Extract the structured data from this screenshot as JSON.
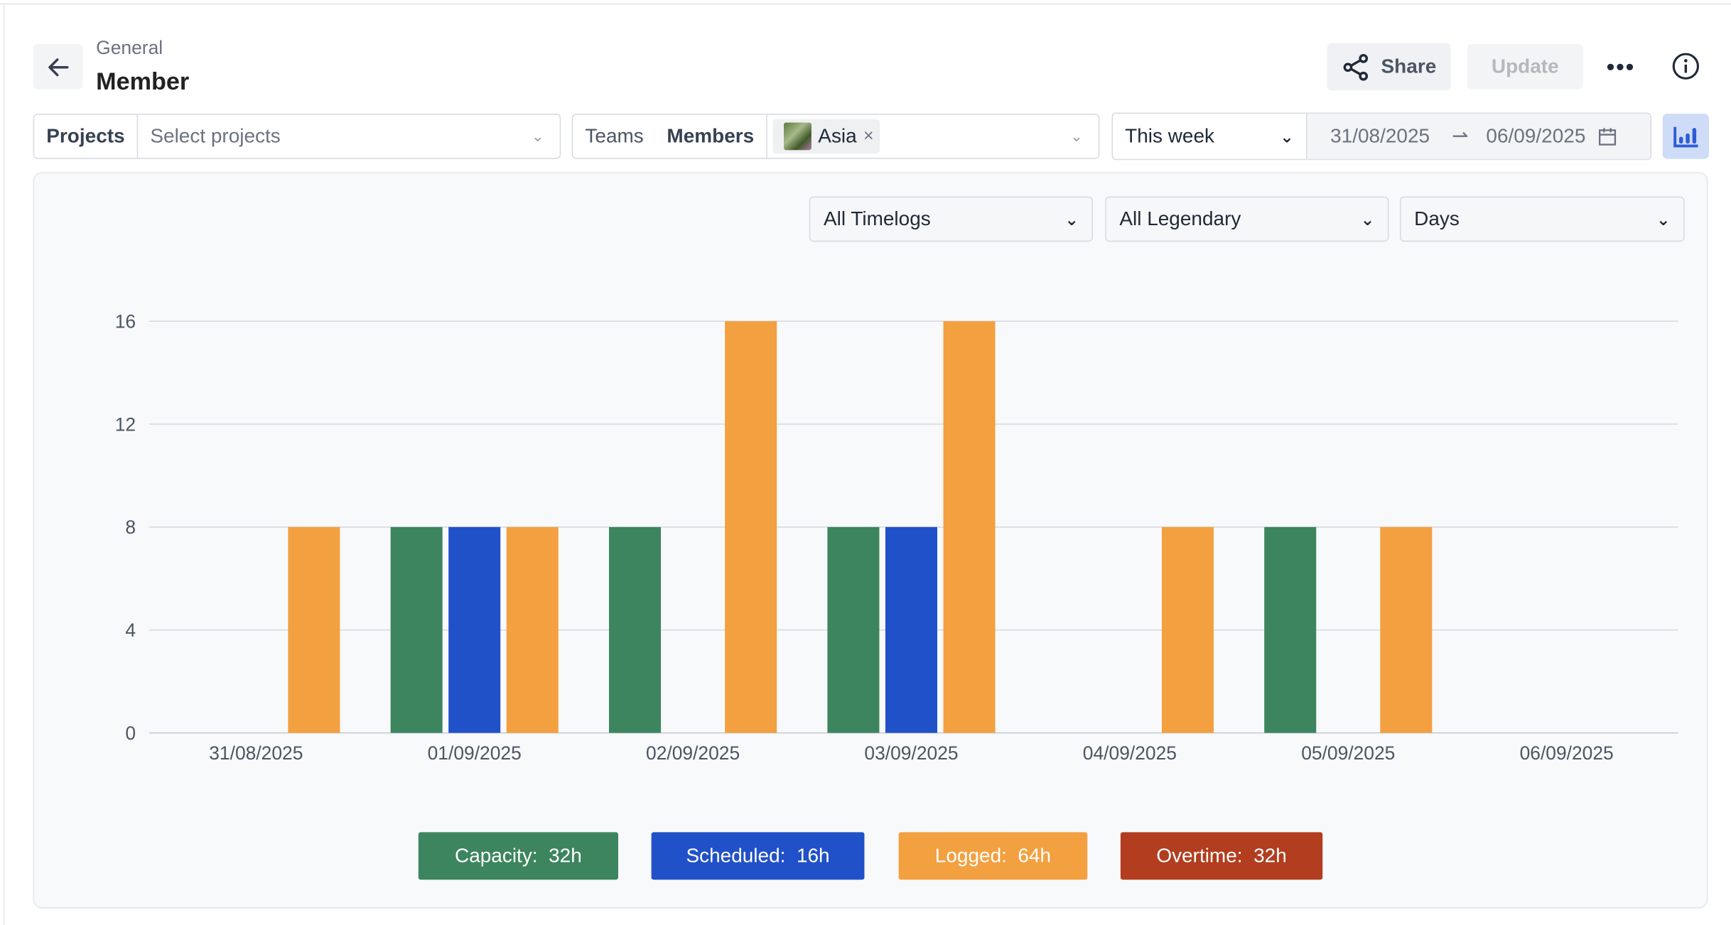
{
  "header": {
    "breadcrumb": "General",
    "title": "Member",
    "share_label": "Share",
    "update_label": "Update"
  },
  "filters": {
    "projects_label": "Projects",
    "projects_placeholder": "Select projects",
    "teams_label": "Teams",
    "members_label": "Members",
    "member_chip": "Asia",
    "period": "This week",
    "date_from": "31/08/2025",
    "date_to": "06/09/2025"
  },
  "chart_controls": {
    "timelogs": "All Timelogs",
    "legendary": "All Legendary",
    "granularity": "Days"
  },
  "colors": {
    "capacity": "#3c855e",
    "scheduled": "#2151c8",
    "logged": "#f3a040",
    "overtime": "#b23d1f",
    "accent": "#2e5bd8"
  },
  "legend": [
    {
      "key": "capacity",
      "label": "Capacity:  32h"
    },
    {
      "key": "scheduled",
      "label": "Scheduled:  16h"
    },
    {
      "key": "logged",
      "label": "Logged:  64h"
    },
    {
      "key": "overtime",
      "label": "Overtime:  32h"
    }
  ],
  "chart_data": {
    "type": "bar",
    "categories": [
      "31/08/2025",
      "01/09/2025",
      "02/09/2025",
      "03/09/2025",
      "04/09/2025",
      "05/09/2025",
      "06/09/2025"
    ],
    "series": [
      {
        "name": "Capacity",
        "values": [
          0,
          8,
          8,
          8,
          0,
          8,
          0
        ]
      },
      {
        "name": "Scheduled",
        "values": [
          0,
          8,
          0,
          8,
          0,
          0,
          0
        ]
      },
      {
        "name": "Logged",
        "values": [
          8,
          8,
          16,
          16,
          8,
          8,
          0
        ]
      }
    ],
    "yticks": [
      0,
      4,
      8,
      12,
      16
    ],
    "ylim": [
      0,
      16
    ],
    "grid": true
  }
}
